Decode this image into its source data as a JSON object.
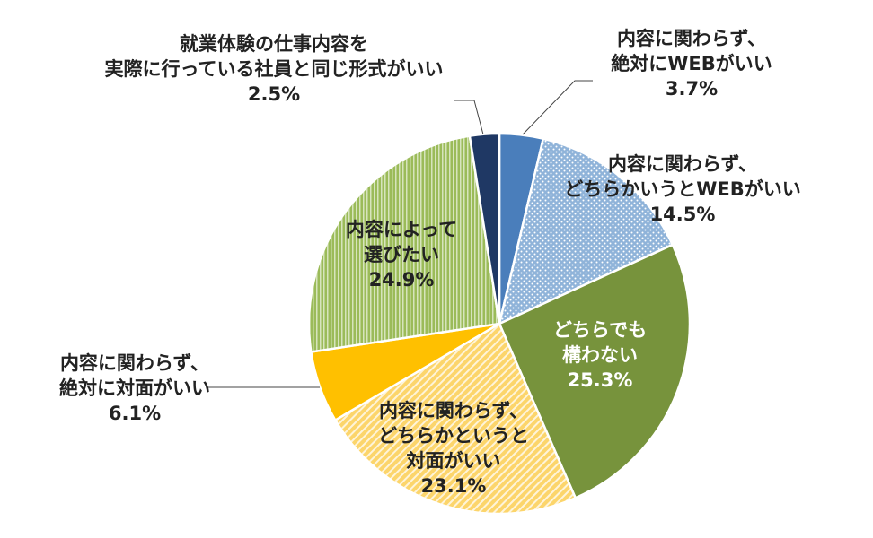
{
  "chart_data": {
    "type": "pie",
    "title": "",
    "start_angle_deg": 0,
    "direction": "clockwise",
    "slices": [
      {
        "id": "web-absolute",
        "label_lines": [
          "内容に関わらず、",
          "絶対にWEBがいい"
        ],
        "value": 3.7,
        "value_label": "3.7%",
        "color": "#4a7ebb",
        "pattern": "solid",
        "label_color": "#222222"
      },
      {
        "id": "lean-web",
        "label_lines": [
          "内容に関わらず、",
          "どちらかいうとWEBがいい"
        ],
        "value": 14.5,
        "value_label": "14.5%",
        "color": "#8fb3d9",
        "pattern": "dots",
        "label_color": "#222222"
      },
      {
        "id": "either",
        "label_lines": [
          "どちらでも",
          "構わない"
        ],
        "value": 25.3,
        "value_label": "25.3%",
        "color": "#77933c",
        "pattern": "solid",
        "label_color": "#ffffff"
      },
      {
        "id": "lean-face",
        "label_lines": [
          "内容に関わらず、",
          "どちらかというと",
          "対面がいい"
        ],
        "value": 23.1,
        "value_label": "23.1%",
        "color": "#fcd56b",
        "pattern": "diagonal",
        "label_color": "#222222"
      },
      {
        "id": "face-absolute",
        "label_lines": [
          "内容に関わらず、",
          "絶対に対面がいい"
        ],
        "value": 6.1,
        "value_label": "6.1%",
        "color": "#ffc000",
        "pattern": "solid",
        "label_color": "#222222"
      },
      {
        "id": "by-content",
        "label_lines": [
          "内容によって",
          "選びたい"
        ],
        "value": 24.9,
        "value_label": "24.9%",
        "color": "#9bbb59",
        "pattern": "vertical",
        "label_color": "#222222"
      },
      {
        "id": "same-as-staff",
        "label_lines": [
          "就業体験の仕事内容を",
          "実際に行っている社員と同じ形式がいい"
        ],
        "value": 2.5,
        "value_label": "2.5%",
        "color": "#1f3864",
        "pattern": "solid",
        "label_color": "#222222"
      }
    ]
  }
}
